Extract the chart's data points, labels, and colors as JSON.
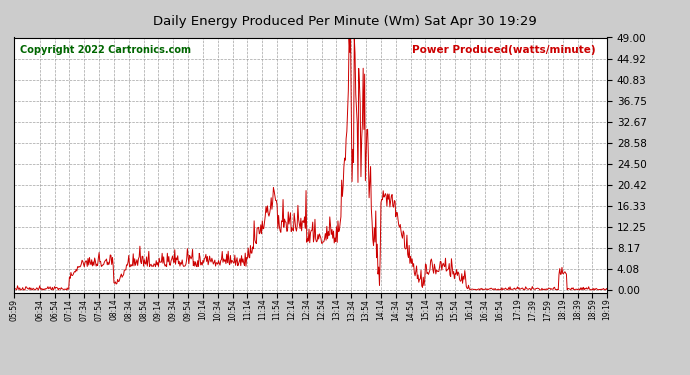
{
  "title": "Daily Energy Produced Per Minute (Wm) Sat Apr 30 19:29",
  "copyright": "Copyright 2022 Cartronics.com",
  "legend_label": "Power Produced(watts/minute)",
  "legend_color": "#cc0000",
  "copyright_color": "#006600",
  "title_color": "black",
  "line_color": "#cc0000",
  "background_color": "#cccccc",
  "plot_background": "#ffffff",
  "grid_color": "#999999",
  "grid_style": "--",
  "yticks": [
    0.0,
    4.08,
    8.17,
    12.25,
    16.33,
    20.42,
    24.5,
    28.58,
    32.67,
    36.75,
    40.83,
    44.92,
    49.0
  ],
  "ylim": [
    -0.5,
    49.0
  ],
  "xtick_labels": [
    "05:59",
    "06:34",
    "06:54",
    "07:14",
    "07:34",
    "07:54",
    "08:14",
    "08:34",
    "08:54",
    "09:14",
    "09:34",
    "09:54",
    "10:14",
    "10:34",
    "10:54",
    "11:14",
    "11:34",
    "11:54",
    "12:14",
    "12:34",
    "12:54",
    "13:14",
    "13:34",
    "13:54",
    "14:14",
    "14:34",
    "14:54",
    "15:14",
    "15:34",
    "15:54",
    "16:14",
    "16:34",
    "16:54",
    "17:19",
    "17:39",
    "17:59",
    "18:19",
    "18:39",
    "18:59",
    "19:19"
  ]
}
